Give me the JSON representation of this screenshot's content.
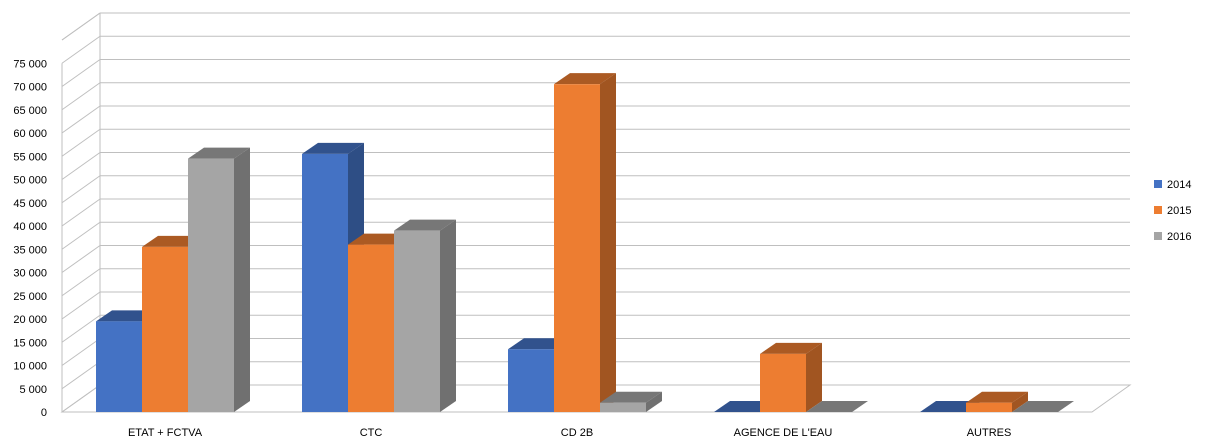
{
  "chart_data": {
    "type": "bar",
    "title": "",
    "xlabel": "",
    "ylabel": "",
    "categories": [
      "ETAT + FCTVA",
      "CTC",
      "CD 2B",
      "AGENCE DE L'EAU",
      "AUTRES"
    ],
    "series": [
      {
        "name": "2014",
        "values": [
          19500,
          55500,
          13500,
          0,
          0
        ],
        "color": "#4472C4"
      },
      {
        "name": "2015",
        "values": [
          35500,
          36000,
          70500,
          12500,
          2000
        ],
        "color": "#ED7D31"
      },
      {
        "name": "2016",
        "values": [
          54500,
          39000,
          2000,
          0,
          0
        ],
        "color": "#A5A5A5"
      }
    ],
    "y_ticks": [
      "0",
      "5 000",
      "10 000",
      "15 000",
      "20 000",
      "25 000",
      "30 000",
      "35 000",
      "40 000",
      "45 000",
      "50 000",
      "55 000",
      "60 000",
      "65 000",
      "70 000",
      "75 000"
    ],
    "ylim": [
      0,
      80000
    ],
    "grid": true,
    "legend_position": "right",
    "projection": "3d-clustered-column"
  }
}
